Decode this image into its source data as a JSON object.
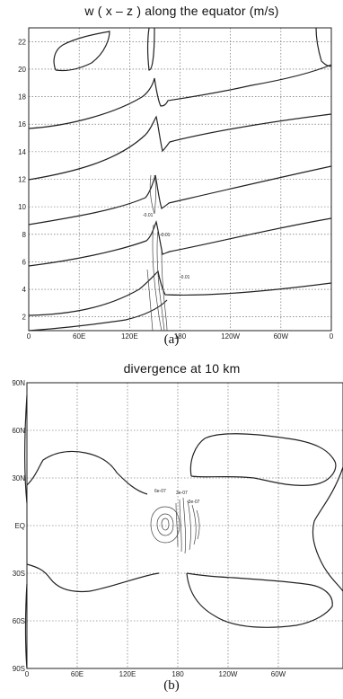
{
  "chart_data": [
    {
      "type": "line",
      "title": "w ( x – z ) along the equator (m/s)",
      "caption": "(a)",
      "x_ticks": [
        "0",
        "60E",
        "120E",
        "180",
        "120W",
        "60W",
        "0"
      ],
      "y_ticks": [
        "2",
        "4",
        "6",
        "8",
        "10",
        "12",
        "14",
        "16",
        "18",
        "20",
        "22"
      ],
      "xlim": [
        0,
        360
      ],
      "ylim": [
        1,
        23
      ],
      "grid": true,
      "contour_labels": [
        "-0.01",
        "-0.01",
        "-0.01"
      ]
    },
    {
      "type": "line",
      "title": "divergence at 10 km",
      "caption": "(b)",
      "x_ticks": [
        "0",
        "60E",
        "120E",
        "180",
        "120W",
        "60W"
      ],
      "y_ticks": [
        "90N",
        "60N",
        "30N",
        "EQ",
        "30S",
        "60S",
        "90S"
      ],
      "xlim": [
        0,
        360
      ],
      "ylim": [
        -90,
        90
      ],
      "grid": true,
      "contour_labels": [
        "6e-07",
        "3e-07",
        "-3e-07"
      ]
    }
  ]
}
